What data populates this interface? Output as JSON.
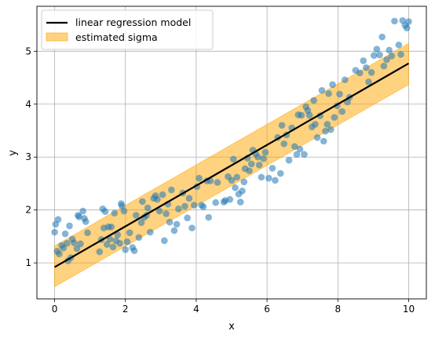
{
  "chart_data": {
    "type": "scatter",
    "xlabel": "x",
    "ylabel": "y",
    "xlim": [
      -0.5,
      10.5
    ],
    "ylim": [
      0.32,
      5.85
    ],
    "xticks": [
      0,
      2,
      4,
      6,
      8,
      10
    ],
    "yticks": [
      1,
      2,
      3,
      4,
      5
    ],
    "grid": true,
    "legend_position": "top-left",
    "legend": [
      {
        "label": "linear regression model",
        "kind": "line",
        "color": "#000000"
      },
      {
        "label": "estimated sigma",
        "kind": "band",
        "color": "#ffa500"
      }
    ],
    "regression_line": {
      "name": "linear regression model",
      "x": [
        0,
        10
      ],
      "y": [
        0.92,
        4.77
      ],
      "color": "#000000"
    },
    "sigma_band": {
      "name": "estimated sigma",
      "x": [
        0,
        10
      ],
      "lower": [
        0.55,
        4.37
      ],
      "upper": [
        1.32,
        5.15
      ],
      "color": "#ffa500",
      "alpha": 0.5
    },
    "scatter": {
      "color": "#1f77b4",
      "alpha": 0.55,
      "points": [
        [
          0.0,
          1.58
        ],
        [
          0.03,
          1.73
        ],
        [
          0.07,
          1.22
        ],
        [
          0.1,
          1.82
        ],
        [
          0.13,
          1.17
        ],
        [
          0.2,
          1.33
        ],
        [
          0.25,
          1.28
        ],
        [
          0.3,
          1.55
        ],
        [
          0.35,
          1.37
        ],
        [
          0.38,
          1.04
        ],
        [
          0.42,
          1.7
        ],
        [
          0.46,
          1.1
        ],
        [
          0.5,
          1.45
        ],
        [
          0.55,
          1.38
        ],
        [
          0.63,
          1.27
        ],
        [
          0.66,
          1.9
        ],
        [
          0.69,
          1.87
        ],
        [
          0.73,
          1.36
        ],
        [
          0.8,
          1.98
        ],
        [
          0.84,
          1.84
        ],
        [
          0.88,
          1.78
        ],
        [
          0.93,
          1.57
        ],
        [
          1.27,
          1.21
        ],
        [
          1.32,
          1.44
        ],
        [
          1.36,
          2.02
        ],
        [
          1.39,
          1.66
        ],
        [
          1.43,
          1.97
        ],
        [
          1.48,
          1.35
        ],
        [
          1.52,
          1.68
        ],
        [
          1.56,
          1.45
        ],
        [
          1.6,
          1.68
        ],
        [
          1.65,
          1.3
        ],
        [
          1.69,
          1.94
        ],
        [
          1.73,
          1.42
        ],
        [
          1.78,
          1.53
        ],
        [
          1.84,
          1.37
        ],
        [
          1.88,
          2.12
        ],
        [
          1.9,
          2.08
        ],
        [
          1.96,
          1.98
        ],
        [
          2.0,
          1.25
        ],
        [
          2.05,
          1.4
        ],
        [
          2.12,
          1.57
        ],
        [
          2.2,
          1.29
        ],
        [
          2.25,
          1.23
        ],
        [
          2.3,
          1.9
        ],
        [
          2.38,
          1.48
        ],
        [
          2.45,
          1.76
        ],
        [
          2.48,
          2.16
        ],
        [
          2.53,
          1.86
        ],
        [
          2.6,
          1.9
        ],
        [
          2.63,
          2.04
        ],
        [
          2.7,
          1.58
        ],
        [
          2.8,
          2.22
        ],
        [
          2.85,
          2.27
        ],
        [
          2.9,
          2.2
        ],
        [
          2.96,
          1.98
        ],
        [
          3.05,
          2.29
        ],
        [
          3.1,
          1.42
        ],
        [
          3.15,
          1.93
        ],
        [
          3.2,
          2.11
        ],
        [
          3.25,
          1.77
        ],
        [
          3.3,
          2.38
        ],
        [
          3.38,
          1.61
        ],
        [
          3.45,
          1.73
        ],
        [
          3.5,
          2.02
        ],
        [
          3.62,
          2.32
        ],
        [
          3.68,
          2.07
        ],
        [
          3.75,
          1.85
        ],
        [
          3.8,
          2.22
        ],
        [
          3.88,
          1.66
        ],
        [
          3.94,
          2.09
        ],
        [
          4.02,
          2.44
        ],
        [
          4.08,
          2.6
        ],
        [
          4.15,
          2.09
        ],
        [
          4.2,
          2.06
        ],
        [
          4.3,
          2.55
        ],
        [
          4.35,
          1.86
        ],
        [
          4.4,
          2.55
        ],
        [
          4.55,
          2.14
        ],
        [
          4.6,
          2.52
        ],
        [
          4.78,
          2.15
        ],
        [
          4.82,
          2.18
        ],
        [
          4.9,
          2.63
        ],
        [
          4.95,
          2.2
        ],
        [
          5.0,
          2.56
        ],
        [
          5.05,
          2.96
        ],
        [
          5.1,
          2.42
        ],
        [
          5.15,
          2.62
        ],
        [
          5.2,
          2.3
        ],
        [
          5.25,
          2.15
        ],
        [
          5.3,
          2.36
        ],
        [
          5.35,
          2.53
        ],
        [
          5.38,
          2.78
        ],
        [
          5.45,
          2.98
        ],
        [
          5.5,
          2.74
        ],
        [
          5.56,
          2.87
        ],
        [
          5.6,
          3.13
        ],
        [
          5.68,
          3.06
        ],
        [
          5.74,
          3.0
        ],
        [
          5.78,
          2.85
        ],
        [
          5.84,
          2.62
        ],
        [
          5.9,
          2.97
        ],
        [
          5.95,
          3.09
        ],
        [
          6.05,
          2.6
        ],
        [
          6.15,
          2.79
        ],
        [
          6.23,
          2.56
        ],
        [
          6.3,
          3.37
        ],
        [
          6.38,
          2.69
        ],
        [
          6.42,
          3.6
        ],
        [
          6.48,
          3.25
        ],
        [
          6.55,
          3.42
        ],
        [
          6.62,
          2.94
        ],
        [
          6.7,
          3.55
        ],
        [
          6.78,
          3.2
        ],
        [
          6.84,
          3.05
        ],
        [
          6.88,
          3.8
        ],
        [
          6.93,
          3.15
        ],
        [
          6.97,
          3.79
        ],
        [
          7.05,
          3.05
        ],
        [
          7.1,
          3.95
        ],
        [
          7.15,
          3.88
        ],
        [
          7.2,
          3.79
        ],
        [
          7.27,
          3.57
        ],
        [
          7.32,
          4.07
        ],
        [
          7.36,
          3.62
        ],
        [
          7.42,
          3.37
        ],
        [
          7.5,
          3.78
        ],
        [
          7.55,
          4.26
        ],
        [
          7.6,
          3.3
        ],
        [
          7.65,
          3.49
        ],
        [
          7.7,
          3.62
        ],
        [
          7.74,
          4.2
        ],
        [
          7.8,
          3.52
        ],
        [
          7.85,
          4.37
        ],
        [
          7.9,
          3.75
        ],
        [
          7.98,
          3.97
        ],
        [
          8.05,
          4.19
        ],
        [
          8.12,
          3.86
        ],
        [
          8.2,
          4.46
        ],
        [
          8.27,
          4.04
        ],
        [
          8.33,
          4.13
        ],
        [
          8.5,
          4.64
        ],
        [
          8.62,
          4.59
        ],
        [
          8.72,
          4.82
        ],
        [
          8.8,
          4.69
        ],
        [
          8.87,
          4.42
        ],
        [
          8.95,
          4.6
        ],
        [
          9.02,
          4.92
        ],
        [
          9.1,
          5.04
        ],
        [
          9.18,
          4.93
        ],
        [
          9.25,
          5.27
        ],
        [
          9.3,
          4.72
        ],
        [
          9.38,
          4.84
        ],
        [
          9.45,
          5.02
        ],
        [
          9.52,
          4.91
        ],
        [
          9.6,
          5.57
        ],
        [
          9.72,
          5.12
        ],
        [
          9.78,
          4.94
        ],
        [
          9.83,
          5.58
        ],
        [
          9.9,
          5.49
        ],
        [
          9.95,
          5.44
        ],
        [
          10.0,
          5.56
        ]
      ]
    }
  }
}
